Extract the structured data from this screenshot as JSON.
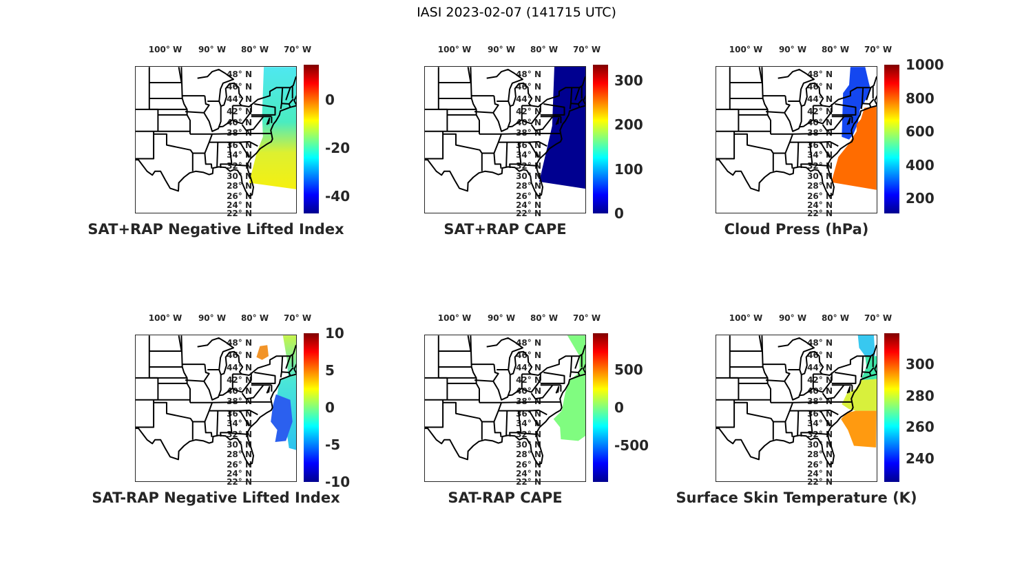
{
  "title": "IASI 2023-02-07 (141715 UTC)",
  "colormap": "jet",
  "lon_labels": [
    "100° W",
    "90° W",
    "80° W",
    "70° W"
  ],
  "lat_labels": [
    "48° N",
    "46° N",
    "44° N",
    "42° N",
    "40° N",
    "38° N",
    "36° N",
    "34° N",
    "32° N",
    "30° N",
    "28° N",
    "26° N",
    "24° N",
    "22° N"
  ],
  "panels": [
    {
      "title": "SAT+RAP Negative Lifted Index",
      "clim": [
        -47,
        14.5
      ],
      "ticks": [
        "0",
        "-20",
        "-40"
      ],
      "tick_values": [
        0,
        -20,
        -40
      ]
    },
    {
      "title": "SAT+RAP CAPE",
      "clim": [
        0,
        335
      ],
      "ticks": [
        "300",
        "200",
        "100",
        "0"
      ],
      "tick_values": [
        300,
        200,
        100,
        0
      ]
    },
    {
      "title": "Cloud Press (hPa)",
      "clim": [
        110,
        1000
      ],
      "ticks": [
        "1000",
        "800",
        "600",
        "400",
        "200"
      ],
      "tick_values": [
        1000,
        800,
        600,
        400,
        200
      ]
    },
    {
      "title": "SAT-RAP Negative Lifted Index",
      "clim": [
        -10,
        10
      ],
      "ticks": [
        "10",
        "5",
        "0",
        "-5",
        "-10"
      ],
      "tick_values": [
        10,
        5,
        0,
        -5,
        -10
      ]
    },
    {
      "title": "SAT-RAP CAPE",
      "clim": [
        -990,
        990
      ],
      "ticks": [
        "500",
        "0",
        "-500"
      ],
      "tick_values": [
        500,
        0,
        -500
      ]
    },
    {
      "title": "Surface Skin Temperature (K)",
      "clim": [
        225,
        320
      ],
      "ticks": [
        "300",
        "280",
        "260",
        "240"
      ],
      "tick_values": [
        300,
        280,
        260,
        240
      ]
    }
  ]
}
